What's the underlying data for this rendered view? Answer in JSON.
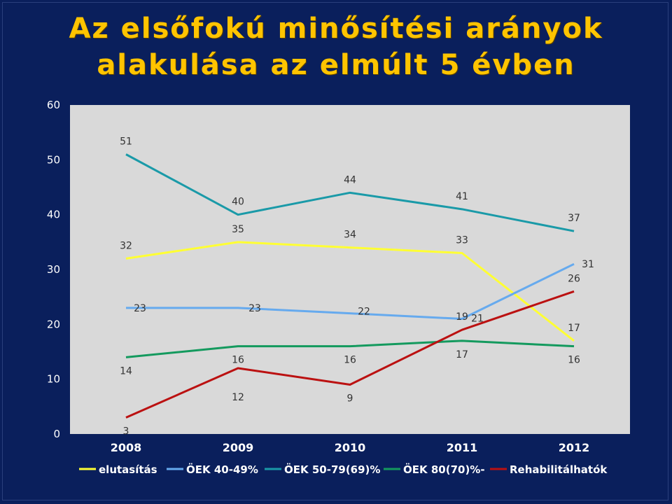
{
  "title_line1": "Az elsőfokú minősítési arányok",
  "title_line2": "alakulása az elmúlt 5 évben",
  "chart_data": {
    "type": "line",
    "title": "Az elsőfokú minősítési arányok alakulása az elmúlt 5 évben",
    "categories": [
      "2008",
      "2009",
      "2010",
      "2011",
      "2012"
    ],
    "ylim": [
      0,
      60
    ],
    "yticks": [
      "0",
      "10",
      "20",
      "30",
      "40",
      "50",
      "60"
    ],
    "grid": false,
    "legend_position": "bottom",
    "series": [
      {
        "name": "elutasítás",
        "color": "#ffff33",
        "values": [
          32,
          35,
          34,
          33,
          17
        ]
      },
      {
        "name": "ÖEK 40-49%",
        "color": "#66aaee",
        "values": [
          23,
          23,
          22,
          21,
          31
        ]
      },
      {
        "name": "ÖEK 50-79(69)%",
        "color": "#1a9aa8",
        "values": [
          51,
          40,
          44,
          41,
          37
        ]
      },
      {
        "name": "ÖEK 80(70)%-",
        "color": "#149a5e",
        "values": [
          14,
          16,
          16,
          17,
          16
        ]
      },
      {
        "name": "Rehabilitálhatók",
        "color": "#bb1111",
        "values": [
          3,
          12,
          9,
          19,
          26
        ]
      }
    ]
  },
  "colors": {
    "background": "#0a1f5c",
    "plot_area": "#d9d9d9",
    "title": "#ffc400"
  }
}
